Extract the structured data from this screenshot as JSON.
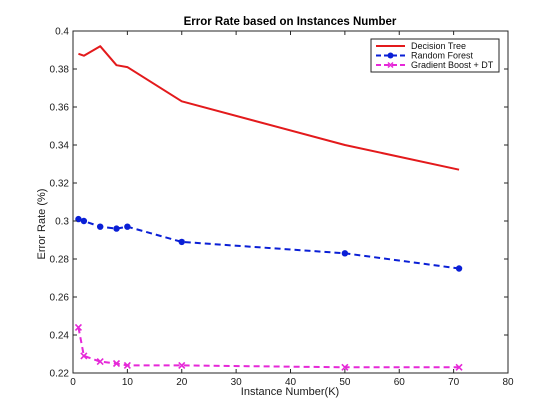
{
  "chart_data": {
    "type": "line",
    "title": "Error Rate based on Instances Number",
    "xlabel": "Instance Number(K)",
    "ylabel": "Error Rate (%)",
    "xlim": [
      0,
      80
    ],
    "ylim": [
      0.22,
      0.4
    ],
    "xticks": [
      0,
      10,
      20,
      30,
      40,
      50,
      60,
      70,
      80
    ],
    "yticks": [
      0.22,
      0.24,
      0.26,
      0.28,
      0.3,
      0.32,
      0.34,
      0.36,
      0.38,
      0.4
    ],
    "xtick_labels": [
      "0",
      "10",
      "20",
      "30",
      "40",
      "50",
      "60",
      "70",
      "80"
    ],
    "ytick_labels": [
      "0.22",
      "0.24",
      "0.26",
      "0.28",
      "0.3",
      "0.32",
      "0.34",
      "0.36",
      "0.38",
      "0.4"
    ],
    "grid": false,
    "legend_position": "top-right",
    "series": [
      {
        "name": "Decision Tree",
        "color": "#e31a1c",
        "line_style": "solid",
        "marker": "none",
        "x": [
          1,
          2,
          5,
          8,
          10,
          20,
          50,
          71
        ],
        "y": [
          0.388,
          0.387,
          0.392,
          0.382,
          0.381,
          0.363,
          0.34,
          0.327
        ]
      },
      {
        "name": "Random Forest",
        "color": "#0a1fd6",
        "line_style": "dashed",
        "marker": "dot",
        "x": [
          1,
          2,
          5,
          8,
          10,
          20,
          50,
          71
        ],
        "y": [
          0.301,
          0.3,
          0.297,
          0.296,
          0.297,
          0.289,
          0.283,
          0.275
        ]
      },
      {
        "name": "Gradient Boost + DT",
        "color": "#e628d8",
        "line_style": "dashed",
        "marker": "x",
        "x": [
          1,
          2,
          5,
          8,
          10,
          20,
          50,
          71
        ],
        "y": [
          0.244,
          0.229,
          0.226,
          0.225,
          0.224,
          0.224,
          0.223,
          0.223
        ]
      }
    ]
  }
}
